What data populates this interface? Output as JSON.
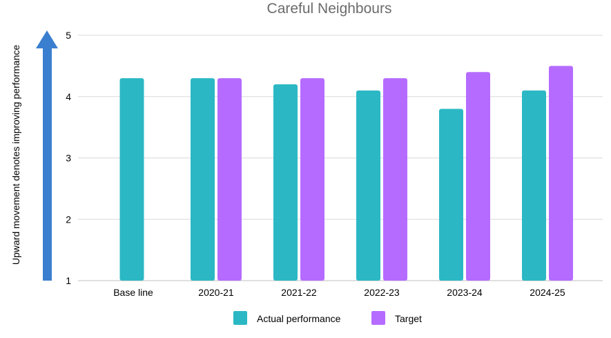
{
  "chart_data": {
    "type": "bar",
    "title": "Careful Neighbours",
    "xlabel": "",
    "ylabel": "Upward movement denotes improving performance",
    "ylim": [
      1,
      5
    ],
    "yticks": [
      1,
      2,
      3,
      4,
      5
    ],
    "grid": true,
    "legend_position": "bottom",
    "categories": [
      "Base line",
      "2020-21",
      "2021-22",
      "2022-23",
      "2023-24",
      "2024-25"
    ],
    "series": [
      {
        "name": "Actual performance",
        "color": "#2bb8c4",
        "values": [
          4.3,
          4.3,
          4.2,
          4.1,
          3.8,
          4.1
        ]
      },
      {
        "name": "Target",
        "color": "#b56bff",
        "values": [
          null,
          4.3,
          4.3,
          4.3,
          4.4,
          4.5
        ]
      }
    ],
    "arrow_color": "#3a7fcf"
  }
}
